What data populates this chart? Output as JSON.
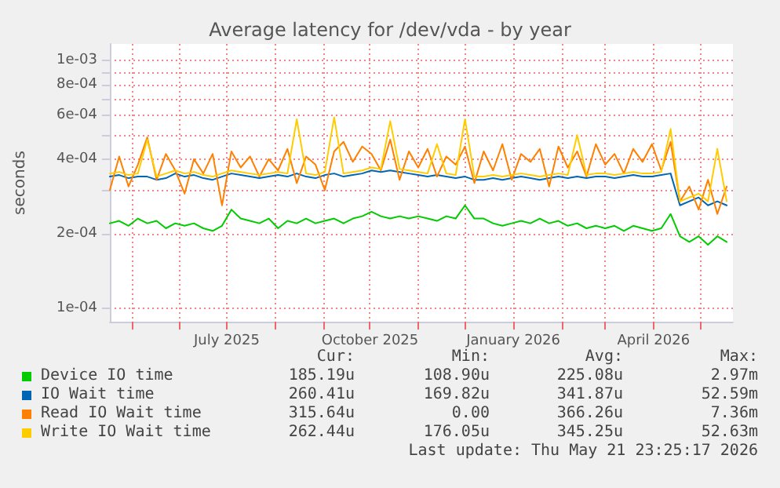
{
  "chart_data": {
    "type": "line",
    "title": "Average latency for /dev/vda - by year",
    "ylabel": "seconds",
    "log": "y",
    "grid": true,
    "legend": "bottom",
    "marker": "none",
    "line_style": "solid",
    "xlim": [
      "2025-04-17",
      "2026-05-22"
    ],
    "xticks": [
      {
        "value": "2025-05-01",
        "label": null
      },
      {
        "value": "2025-06-01",
        "label": null
      },
      {
        "value": "2025-07-01",
        "label": "July 2025"
      },
      {
        "value": "2025-08-01",
        "label": null
      },
      {
        "value": "2025-09-01",
        "label": null
      },
      {
        "value": "2025-10-01",
        "label": "October 2025"
      },
      {
        "value": "2025-11-01",
        "label": null
      },
      {
        "value": "2025-12-01",
        "label": null
      },
      {
        "value": "2026-01-01",
        "label": "January 2026"
      },
      {
        "value": "2026-02-01",
        "label": null
      },
      {
        "value": "2026-03-01",
        "label": null
      },
      {
        "value": "2026-04-01",
        "label": "April 2026"
      },
      {
        "value": "2026-05-01",
        "label": null
      }
    ],
    "ylim": [
      8.8e-05,
      0.00117
    ],
    "yticks": [
      {
        "value": 0.0001,
        "label": "1e-04"
      },
      {
        "value": 0.0002,
        "label": "2e-04"
      },
      {
        "value": 0.0003,
        "label": null
      },
      {
        "value": 0.0004,
        "label": "4e-04"
      },
      {
        "value": 0.0005,
        "label": null
      },
      {
        "value": 0.0006,
        "label": "6e-04"
      },
      {
        "value": 0.0007,
        "label": null
      },
      {
        "value": 0.0008,
        "label": "8e-04"
      },
      {
        "value": 0.0009,
        "label": null
      },
      {
        "value": 0.001,
        "label": "1e-03"
      }
    ],
    "x": [
      "2025-04-17",
      "2025-04-23",
      "2025-04-29",
      "2025-05-05",
      "2025-05-11",
      "2025-05-17",
      "2025-05-23",
      "2025-05-29",
      "2025-06-04",
      "2025-06-10",
      "2025-06-16",
      "2025-06-22",
      "2025-06-28",
      "2025-07-04",
      "2025-07-10",
      "2025-07-16",
      "2025-07-22",
      "2025-07-28",
      "2025-08-03",
      "2025-08-09",
      "2025-08-15",
      "2025-08-21",
      "2025-08-27",
      "2025-09-02",
      "2025-09-08",
      "2025-09-14",
      "2025-09-20",
      "2025-09-26",
      "2025-10-02",
      "2025-10-08",
      "2025-10-14",
      "2025-10-20",
      "2025-10-26",
      "2025-11-01",
      "2025-11-07",
      "2025-11-13",
      "2025-11-19",
      "2025-11-25",
      "2025-12-01",
      "2025-12-07",
      "2025-12-13",
      "2025-12-19",
      "2025-12-25",
      "2025-12-31",
      "2026-01-06",
      "2026-01-12",
      "2026-01-18",
      "2026-01-24",
      "2026-01-30",
      "2026-02-05",
      "2026-02-11",
      "2026-02-17",
      "2026-02-23",
      "2026-03-01",
      "2026-03-07",
      "2026-03-13",
      "2026-03-19",
      "2026-03-25",
      "2026-03-31",
      "2026-04-06",
      "2026-04-12",
      "2026-04-18",
      "2026-04-24",
      "2026-04-30",
      "2026-05-06",
      "2026-05-12",
      "2026-05-18"
    ],
    "series": [
      {
        "name": "Device IO time",
        "color": "#00cc00",
        "values": [
          0.00022,
          0.000225,
          0.000215,
          0.00023,
          0.00022,
          0.000225,
          0.00021,
          0.00022,
          0.000215,
          0.00022,
          0.00021,
          0.000205,
          0.000215,
          0.00025,
          0.00023,
          0.000225,
          0.00022,
          0.00023,
          0.00021,
          0.000225,
          0.00022,
          0.00023,
          0.00022,
          0.000225,
          0.00023,
          0.00022,
          0.00023,
          0.000235,
          0.000245,
          0.000235,
          0.00023,
          0.000235,
          0.00023,
          0.000235,
          0.00023,
          0.000225,
          0.000235,
          0.00023,
          0.00026,
          0.00023,
          0.00023,
          0.00022,
          0.000215,
          0.00022,
          0.000225,
          0.00022,
          0.00023,
          0.00022,
          0.000225,
          0.000215,
          0.00022,
          0.00021,
          0.000215,
          0.00021,
          0.000215,
          0.000205,
          0.000215,
          0.00021,
          0.000205,
          0.00021,
          0.00024,
          0.000195,
          0.000185,
          0.000195,
          0.00018,
          0.000195,
          0.000185
        ]
      },
      {
        "name": "IO Wait time",
        "color": "#0066b3",
        "values": [
          0.00034,
          0.000345,
          0.000335,
          0.00034,
          0.00034,
          0.00033,
          0.000335,
          0.00035,
          0.00034,
          0.000345,
          0.000335,
          0.00033,
          0.00034,
          0.00035,
          0.000345,
          0.00034,
          0.000335,
          0.00034,
          0.000345,
          0.00034,
          0.00035,
          0.00034,
          0.000335,
          0.000345,
          0.00035,
          0.00034,
          0.000345,
          0.00035,
          0.00036,
          0.000355,
          0.00036,
          0.000355,
          0.00035,
          0.000345,
          0.00034,
          0.000345,
          0.00034,
          0.000335,
          0.00034,
          0.00033,
          0.00033,
          0.000335,
          0.00033,
          0.000335,
          0.00034,
          0.000335,
          0.00033,
          0.000335,
          0.00034,
          0.000335,
          0.00034,
          0.000335,
          0.00034,
          0.00034,
          0.000335,
          0.00034,
          0.000345,
          0.00034,
          0.00034,
          0.000345,
          0.00035,
          0.00026,
          0.00027,
          0.00028,
          0.00026,
          0.00027,
          0.00026
        ]
      },
      {
        "name": "Read IO Wait time",
        "color": "#ff8000",
        "values": [
          0.0003,
          0.00041,
          0.00031,
          0.00038,
          0.00049,
          0.00033,
          0.00042,
          0.00036,
          0.00029,
          0.0004,
          0.00035,
          0.00042,
          0.00026,
          0.00043,
          0.00037,
          0.00041,
          0.00034,
          0.0004,
          0.00036,
          0.00044,
          0.00032,
          0.00041,
          0.00038,
          0.0003,
          0.00043,
          0.00047,
          0.00039,
          0.00045,
          0.00042,
          0.00036,
          0.00048,
          0.00033,
          0.00043,
          0.00037,
          0.00044,
          0.00034,
          0.00041,
          0.00038,
          0.00045,
          0.00032,
          0.00043,
          0.00036,
          0.00046,
          0.00033,
          0.00042,
          0.00039,
          0.00044,
          0.00031,
          0.00045,
          0.00037,
          0.00043,
          0.00034,
          0.00046,
          0.00038,
          0.00042,
          0.00035,
          0.00044,
          0.00039,
          0.00046,
          0.00036,
          0.00047,
          0.00027,
          0.00031,
          0.00025,
          0.00033,
          0.00024,
          0.00031
        ]
      },
      {
        "name": "Write IO Wait time",
        "color": "#ffcc00",
        "values": [
          0.00035,
          0.000355,
          0.000345,
          0.00035,
          0.00048,
          0.00034,
          0.00035,
          0.00036,
          0.00035,
          0.000355,
          0.000345,
          0.00034,
          0.00035,
          0.00036,
          0.000355,
          0.00035,
          0.000345,
          0.00035,
          0.000355,
          0.00035,
          0.00058,
          0.00035,
          0.000345,
          0.000355,
          0.00059,
          0.00035,
          0.000355,
          0.00036,
          0.00037,
          0.000365,
          0.00057,
          0.000365,
          0.00036,
          0.000355,
          0.00035,
          0.00046,
          0.00035,
          0.000345,
          0.00058,
          0.00034,
          0.00034,
          0.000345,
          0.00034,
          0.000345,
          0.00035,
          0.000345,
          0.00034,
          0.000345,
          0.00035,
          0.000345,
          0.0005,
          0.000345,
          0.00035,
          0.00035,
          0.000345,
          0.00035,
          0.000355,
          0.00035,
          0.00035,
          0.000355,
          0.00053,
          0.00027,
          0.00028,
          0.00029,
          0.00027,
          0.00044,
          0.00027
        ]
      }
    ],
    "annotations": [
      "Cur:",
      "Min:",
      "Avg:",
      "Max:",
      "185.19u",
      "108.90u",
      "225.08u",
      "2.97m",
      "260.41u",
      "169.82u",
      "341.87u",
      "52.59m",
      "315.64u",
      "0.00",
      "366.26u",
      "7.36m",
      "262.44u",
      "176.05u",
      "345.25u",
      "52.63m",
      "Last update: Thu May 21 23:25:17 2026"
    ]
  }
}
